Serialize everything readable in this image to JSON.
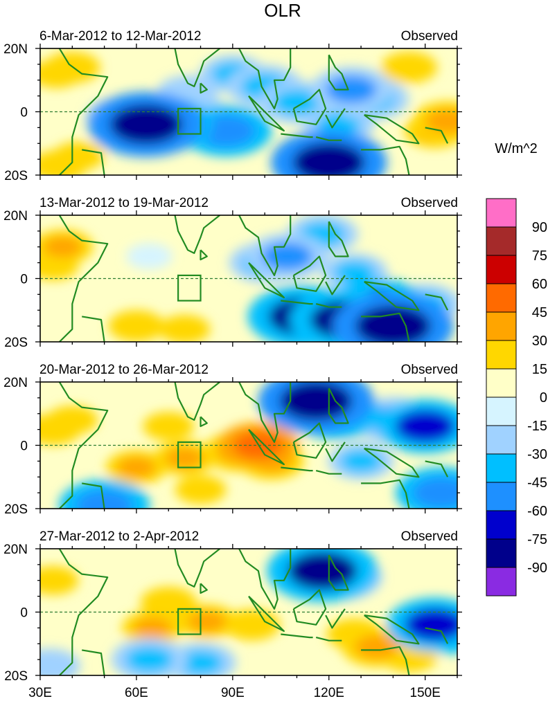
{
  "chart_data": {
    "type": "heatmap",
    "title": "OLR",
    "units": "W/m^2",
    "xlim": [
      30,
      160
    ],
    "ylim": [
      -20,
      20
    ],
    "x_ticks": [
      {
        "value": 30,
        "label": "30E"
      },
      {
        "value": 60,
        "label": "60E"
      },
      {
        "value": 90,
        "label": "90E"
      },
      {
        "value": 120,
        "label": "120E"
      },
      {
        "value": 150,
        "label": "150E"
      }
    ],
    "y_ticks": [
      {
        "value": 20,
        "label": "20N"
      },
      {
        "value": 0,
        "label": "0"
      },
      {
        "value": -20,
        "label": "20S"
      }
    ],
    "box_region": {
      "lon": [
        73,
        80
      ],
      "lat": [
        -7,
        1
      ]
    },
    "colorbar": {
      "levels": [
        "90",
        "75",
        "60",
        "45",
        "30",
        "15",
        "0",
        "-15",
        "-30",
        "-45",
        "-60",
        "-75",
        "-90"
      ],
      "colors": [
        "#ff6ec7",
        "#a52a2a",
        "#cc0000",
        "#ff6a00",
        "#ffa500",
        "#ffd700",
        "#ffffc8",
        "#d6f4ff",
        "#a0d2ff",
        "#00bfff",
        "#1e90ff",
        "#0000cd",
        "#00008b",
        "#8a2be2"
      ]
    },
    "panels": [
      {
        "period": "6-Mar-2012 to 12-Mar-2012",
        "label": "Observed",
        "anomalies": [
          {
            "lon": 35,
            "lat": 12,
            "value": 20
          },
          {
            "lon": 40,
            "lat": 14,
            "value": 25
          },
          {
            "lon": 36,
            "lat": -17,
            "value": 25
          },
          {
            "lon": 42,
            "lat": -14,
            "value": 20
          },
          {
            "lon": 63,
            "lat": -4,
            "value": -85
          },
          {
            "lon": 68,
            "lat": -4,
            "value": -70
          },
          {
            "lon": 56,
            "lat": -2,
            "value": -45
          },
          {
            "lon": 80,
            "lat": -3,
            "value": -50
          },
          {
            "lon": 88,
            "lat": -6,
            "value": -60
          },
          {
            "lon": 76,
            "lat": 6,
            "value": -30
          },
          {
            "lon": 90,
            "lat": 12,
            "value": -35
          },
          {
            "lon": 100,
            "lat": 8,
            "value": -45
          },
          {
            "lon": 110,
            "lat": 3,
            "value": -45
          },
          {
            "lon": 120,
            "lat": -16,
            "value": -85
          },
          {
            "lon": 127,
            "lat": 7,
            "value": -50
          },
          {
            "lon": 133,
            "lat": 4,
            "value": -45
          },
          {
            "lon": 123,
            "lat": -4,
            "value": -40
          },
          {
            "lon": 145,
            "lat": 14,
            "value": 25
          },
          {
            "lon": 157,
            "lat": -3,
            "value": 40
          },
          {
            "lon": 153,
            "lat": -6,
            "value": 30
          }
        ]
      },
      {
        "period": "13-Mar-2012 to 19-Mar-2012",
        "label": "Observed",
        "anomalies": [
          {
            "lon": 37,
            "lat": 10,
            "value": 30
          },
          {
            "lon": 34,
            "lat": 4,
            "value": 20
          },
          {
            "lon": 60,
            "lat": -15,
            "value": 25
          },
          {
            "lon": 75,
            "lat": -16,
            "value": 20
          },
          {
            "lon": 64,
            "lat": 7,
            "value": -15
          },
          {
            "lon": 100,
            "lat": 5,
            "value": -40
          },
          {
            "lon": 107,
            "lat": 7,
            "value": -50
          },
          {
            "lon": 118,
            "lat": 14,
            "value": -40
          },
          {
            "lon": 112,
            "lat": -12,
            "value": -80
          },
          {
            "lon": 125,
            "lat": -13,
            "value": -80
          },
          {
            "lon": 140,
            "lat": -15,
            "value": -90
          },
          {
            "lon": 135,
            "lat": -9,
            "value": -70
          },
          {
            "lon": 150,
            "lat": -8,
            "value": -40
          },
          {
            "lon": 128,
            "lat": 2,
            "value": -35
          }
        ]
      },
      {
        "period": "20-Mar-2012 to 26-Mar-2012",
        "label": "Observed",
        "anomalies": [
          {
            "lon": 34,
            "lat": 5,
            "value": 25
          },
          {
            "lon": 40,
            "lat": 8,
            "value": 20
          },
          {
            "lon": 60,
            "lat": -7,
            "value": 30
          },
          {
            "lon": 75,
            "lat": -4,
            "value": 30
          },
          {
            "lon": 70,
            "lat": 6,
            "value": 20
          },
          {
            "lon": 92,
            "lat": -2,
            "value": 40
          },
          {
            "lon": 98,
            "lat": 0,
            "value": 50
          },
          {
            "lon": 102,
            "lat": -5,
            "value": 35
          },
          {
            "lon": 80,
            "lat": -14,
            "value": 20
          },
          {
            "lon": 116,
            "lat": 14,
            "value": -85
          },
          {
            "lon": 122,
            "lat": 10,
            "value": -60
          },
          {
            "lon": 140,
            "lat": 8,
            "value": -50
          },
          {
            "lon": 150,
            "lat": 6,
            "value": -65
          },
          {
            "lon": 155,
            "lat": -15,
            "value": -60
          },
          {
            "lon": 130,
            "lat": -5,
            "value": -35
          },
          {
            "lon": 50,
            "lat": -19,
            "value": -60
          }
        ]
      },
      {
        "period": "27-Mar-2012 to 2-Apr-2012",
        "label": "Observed",
        "anomalies": [
          {
            "lon": 34,
            "lat": 10,
            "value": 20
          },
          {
            "lon": 70,
            "lat": 3,
            "value": 25
          },
          {
            "lon": 65,
            "lat": -5,
            "value": 30
          },
          {
            "lon": 82,
            "lat": -3,
            "value": 30
          },
          {
            "lon": 96,
            "lat": -4,
            "value": 25
          },
          {
            "lon": 128,
            "lat": -7,
            "value": 25
          },
          {
            "lon": 135,
            "lat": -11,
            "value": 40
          },
          {
            "lon": 145,
            "lat": -14,
            "value": 25
          },
          {
            "lon": 118,
            "lat": 13,
            "value": -80
          },
          {
            "lon": 124,
            "lat": 11,
            "value": -50
          },
          {
            "lon": 153,
            "lat": -4,
            "value": -65
          },
          {
            "lon": 158,
            "lat": -5,
            "value": -60
          },
          {
            "lon": 64,
            "lat": -15,
            "value": -45
          },
          {
            "lon": 80,
            "lat": -16,
            "value": -40
          },
          {
            "lon": 33,
            "lat": -17,
            "value": -30
          }
        ]
      }
    ]
  }
}
